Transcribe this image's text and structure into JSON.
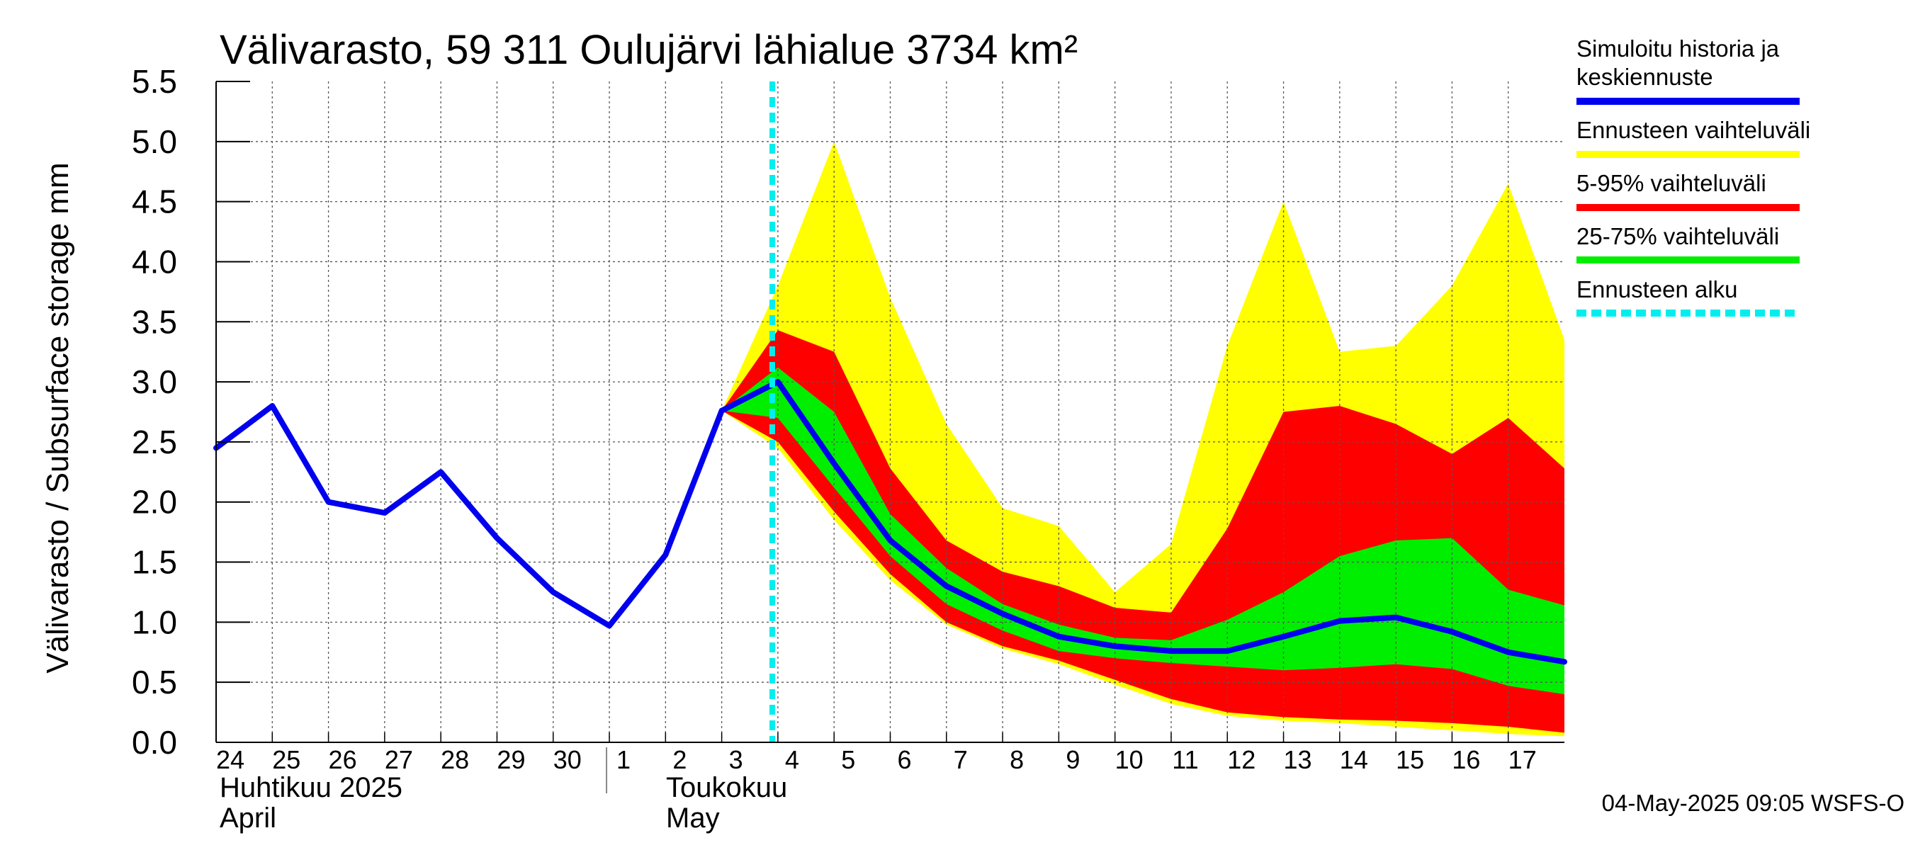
{
  "chart_data": {
    "type": "area",
    "title": "Välivarasto, 59 311 Oulujärvi lähialue 3734 km²",
    "ylabel": "Välivarasto / Subsurface storage  mm",
    "ylim": [
      0,
      5.5
    ],
    "yticks": [
      "0.0",
      "0.5",
      "1.0",
      "1.5",
      "2.0",
      "2.5",
      "3.0",
      "3.5",
      "4.0",
      "4.5",
      "5.0",
      "5.5"
    ],
    "grid": true,
    "xtick_labels": [
      "24",
      "25",
      "26",
      "27",
      "28",
      "29",
      "30",
      "1",
      "2",
      "3",
      "4",
      "5",
      "6",
      "7",
      "8",
      "9",
      "10",
      "11",
      "12",
      "13",
      "14",
      "15",
      "16",
      "17"
    ],
    "month_labels": [
      {
        "line1": "Huhtikuu  2025",
        "line2": "April"
      },
      {
        "line1": "Toukokuu",
        "line2": "May"
      }
    ],
    "forecast_start_day": 3.9,
    "history": {
      "name": "Simuloitu historia ja keskiennuste",
      "color": "#0000ee",
      "x": [
        0,
        1,
        2,
        3,
        4,
        5,
        6,
        7,
        8,
        9
      ],
      "y": [
        2.45,
        2.8,
        2.0,
        1.91,
        2.25,
        1.7,
        1.25,
        0.97,
        1.56,
        2.76
      ]
    },
    "forecast_x": [
      9,
      10,
      11,
      12,
      13,
      14,
      15,
      16,
      17,
      18,
      19,
      20,
      21,
      22,
      23,
      24
    ],
    "bands": [
      {
        "name": "Ennusteen vaihteluväli",
        "color": "#ffff00",
        "upper": [
          2.76,
          3.8,
          5.0,
          3.7,
          2.65,
          1.95,
          1.8,
          1.25,
          1.65,
          3.3,
          4.5,
          3.25,
          3.3,
          3.8,
          4.65,
          3.35
        ],
        "lower": [
          2.76,
          2.45,
          1.85,
          1.35,
          0.98,
          0.78,
          0.65,
          0.48,
          0.32,
          0.22,
          0.18,
          0.16,
          0.13,
          0.1,
          0.07,
          0.05
        ]
      },
      {
        "name": "5-95% vaihteluväli",
        "color": "#ff0000",
        "upper": [
          2.76,
          3.43,
          3.25,
          2.28,
          1.68,
          1.42,
          1.3,
          1.12,
          1.08,
          1.78,
          2.75,
          2.8,
          2.65,
          2.4,
          2.7,
          2.28
        ],
        "lower": [
          2.76,
          2.5,
          1.92,
          1.4,
          1.0,
          0.8,
          0.68,
          0.52,
          0.36,
          0.25,
          0.21,
          0.19,
          0.18,
          0.16,
          0.13,
          0.08
        ]
      },
      {
        "name": "25-75% vaihteluväli",
        "color": "#00ee00",
        "upper": [
          2.76,
          3.12,
          2.75,
          1.9,
          1.45,
          1.15,
          0.98,
          0.87,
          0.85,
          1.02,
          1.25,
          1.55,
          1.68,
          1.7,
          1.27,
          1.14
        ],
        "lower": [
          2.76,
          2.7,
          2.12,
          1.55,
          1.15,
          0.93,
          0.76,
          0.7,
          0.66,
          0.63,
          0.6,
          0.62,
          0.65,
          0.61,
          0.47,
          0.4
        ]
      }
    ],
    "median": {
      "color": "#0000ee",
      "y": [
        2.76,
        3.0,
        2.32,
        1.68,
        1.3,
        1.07,
        0.88,
        0.8,
        0.76,
        0.76,
        0.88,
        1.01,
        1.04,
        0.92,
        0.75,
        0.67
      ]
    },
    "legend": [
      {
        "label": "Simuloitu historia ja keskiennuste",
        "line1": "Simuloitu historia ja",
        "line2": "keskiennuste",
        "color": "#0000ee",
        "style": "solid"
      },
      {
        "label": "Ennusteen vaihteluväli",
        "line1": "Ennusteen vaihteluväli",
        "line2": "",
        "color": "#ffff00",
        "style": "solid"
      },
      {
        "label": "5-95% vaihteluväli",
        "line1": "5-95% vaihteluväli",
        "line2": "",
        "color": "#ff0000",
        "style": "solid"
      },
      {
        "label": "25-75% vaihteluväli",
        "line1": "25-75% vaihteluväli",
        "line2": "",
        "color": "#00ee00",
        "style": "solid"
      },
      {
        "label": "Ennusteen alku",
        "line1": "Ennusteen alku",
        "line2": "",
        "color": "#00eeee",
        "style": "dashed"
      }
    ],
    "legend_position": "right",
    "footer": "04-May-2025 09:05 WSFS-O"
  }
}
